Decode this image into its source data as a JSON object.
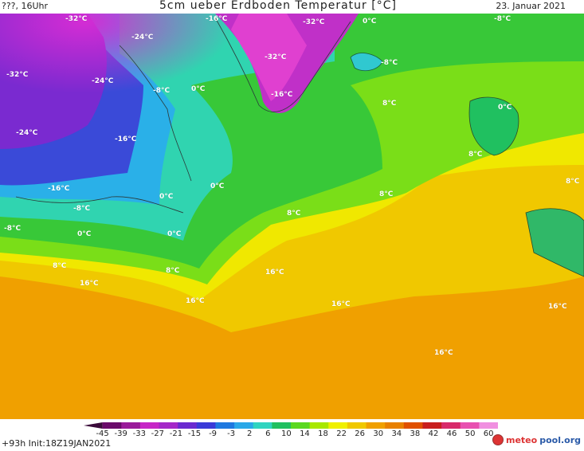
{
  "header": {
    "left": "???, 16Uhr",
    "title": "5cm ueber Erdboden Temperatur [°C]",
    "date": "23. Januar 2021"
  },
  "map": {
    "labels": [
      "-32°C",
      "-24°C",
      "-16°C",
      "-8°C",
      "0°C",
      "8°C",
      "16°C"
    ]
  },
  "legend": {
    "ticks": [
      "-45",
      "-39",
      "-33",
      "-27",
      "-21",
      "-15",
      "-9",
      "-3",
      "2",
      "6",
      "10",
      "14",
      "18",
      "22",
      "26",
      "30",
      "34",
      "38",
      "42",
      "46",
      "50",
      "60"
    ],
    "colors": [
      "#3a0a3a",
      "#6a0a6a",
      "#9a1a9a",
      "#c626c6",
      "#a428c8",
      "#6a2ad0",
      "#3a3ad8",
      "#1e78e0",
      "#2aa8e8",
      "#30d4c0",
      "#20c060",
      "#5ad820",
      "#a8e800",
      "#f0f000",
      "#f0c800",
      "#f0a000",
      "#e88000",
      "#e05000",
      "#c81e1e",
      "#d82a6a",
      "#e850b0",
      "#f090e0"
    ]
  },
  "footer": {
    "run_info": "+93h Init:18Z19JAN2021",
    "logo_part1": "meteo",
    "logo_part2": "pool.org"
  }
}
